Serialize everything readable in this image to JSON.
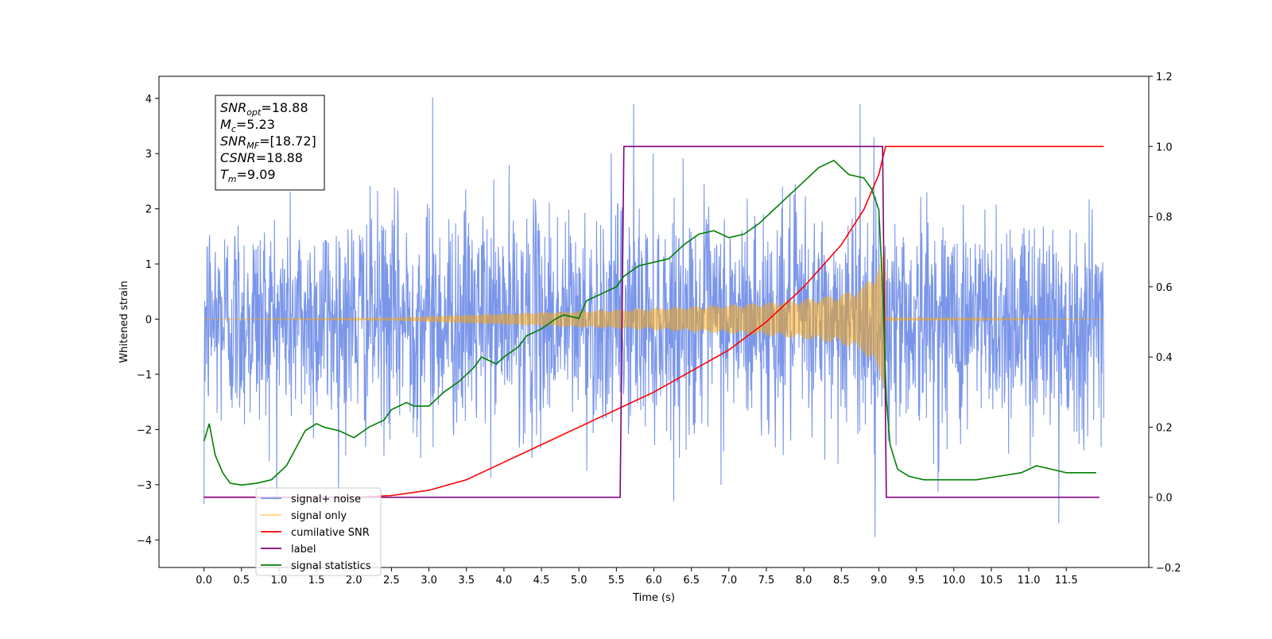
{
  "chart_data": {
    "type": "line",
    "xlabel": "Time (s)",
    "ylabel": "Whitened strain",
    "xlim": [
      -0.6,
      12.6
    ],
    "ylim": [
      -4.5,
      4.4
    ],
    "y2lim": [
      -0.2,
      1.2
    ],
    "x_ticks": [
      0.0,
      0.5,
      1.0,
      1.5,
      2.0,
      2.5,
      3.0,
      3.5,
      4.0,
      4.5,
      5.0,
      5.5,
      6.0,
      6.5,
      7.0,
      7.5,
      8.0,
      8.5,
      9.0,
      9.5,
      10.0,
      10.5,
      11.0,
      11.5
    ],
    "x_tick_labels": [
      "0.0",
      "0.5",
      "1.0",
      "1.5",
      "2.0",
      "2.5",
      "3.0",
      "3.5",
      "4.0",
      "4.5",
      "5.0",
      "5.5",
      "6.0",
      "6.5",
      "7.0",
      "7.5",
      "8.0",
      "8.5",
      "9.0",
      "9.5",
      "10.0",
      "10.5",
      "11.0",
      "11.5"
    ],
    "y_ticks": [
      -4,
      -3,
      -2,
      -1,
      0,
      1,
      2,
      3,
      4
    ],
    "y_tick_labels": [
      "−4",
      "−3",
      "−2",
      "−1",
      "0",
      "1",
      "2",
      "3",
      "4"
    ],
    "y2_ticks": [
      -0.2,
      0.0,
      0.2,
      0.4,
      0.6,
      0.8,
      1.0,
      1.2
    ],
    "y2_tick_labels": [
      "−0.2",
      "0.0",
      "0.2",
      "0.4",
      "0.6",
      "0.8",
      "1.0",
      "1.2"
    ],
    "legend_position": "lower-left",
    "annotation": {
      "lines": [
        {
          "main": "SNR",
          "sub": "opt",
          "rest": "=18.88"
        },
        {
          "main": "M",
          "sub": "c",
          "rest": "=5.23"
        },
        {
          "main": "SNR",
          "sub": "MF",
          "rest": "=[18.72]"
        },
        {
          "main": "CSNR",
          "sub": "",
          "rest": "=18.88"
        },
        {
          "main": "T",
          "sub": "m",
          "rest": "=9.09"
        }
      ]
    },
    "series": [
      {
        "name": "signal+ noise",
        "axis": "left",
        "color": "#4169e1",
        "description": "white noise of std ~1 spanning 0 to 12 s, peaks near 4.0 at 3.05 s and -3.95 at 8.9 s",
        "x_range": [
          0.0,
          12.0
        ],
        "noise_std": 1.0,
        "notable_peaks": [
          [
            3.05,
            4.02
          ],
          [
            5.73,
            3.9
          ],
          [
            8.75,
            3.9
          ],
          [
            8.95,
            -3.95
          ],
          [
            11.4,
            -3.7
          ],
          [
            0.0,
            -3.35
          ]
        ]
      },
      {
        "name": "signal only",
        "axis": "left",
        "color": "#ffa500",
        "description": "chirp with growing amplitude from 2.5 s to merger at 9.09 s",
        "x_range": [
          0.0,
          12.0
        ],
        "envelope_x": [
          0.0,
          2.5,
          3.0,
          4.0,
          5.0,
          6.0,
          7.0,
          7.5,
          8.0,
          8.5,
          8.8,
          9.0,
          9.09,
          9.1,
          12.0
        ],
        "envelope_amp": [
          0.0,
          0.02,
          0.05,
          0.1,
          0.15,
          0.2,
          0.26,
          0.3,
          0.36,
          0.45,
          0.6,
          1.0,
          1.3,
          0.03,
          0.0
        ]
      },
      {
        "name": "cumilative SNR",
        "axis": "right",
        "color": "#ff0000",
        "x": [
          0.0,
          1.0,
          2.0,
          2.5,
          3.0,
          3.5,
          4.0,
          4.5,
          5.0,
          5.5,
          6.0,
          6.5,
          7.0,
          7.5,
          8.0,
          8.5,
          8.8,
          9.0,
          9.09,
          9.1,
          12.0
        ],
        "values": [
          0.0,
          0.0,
          0.0,
          0.005,
          0.02,
          0.05,
          0.1,
          0.15,
          0.2,
          0.25,
          0.3,
          0.36,
          0.42,
          0.5,
          0.6,
          0.72,
          0.82,
          0.92,
          1.0,
          1.0,
          1.0
        ]
      },
      {
        "name": "label",
        "axis": "right",
        "color": "#800080",
        "x": [
          0.0,
          5.55,
          5.6,
          9.05,
          9.1,
          11.94
        ],
        "values": [
          0.0,
          0.0,
          1.0,
          1.0,
          0.0,
          0.0
        ]
      },
      {
        "name": "signal statistics",
        "axis": "right",
        "color": "#008000",
        "x": [
          0.0,
          0.07,
          0.15,
          0.25,
          0.35,
          0.5,
          0.7,
          0.9,
          1.1,
          1.2,
          1.35,
          1.5,
          1.6,
          1.8,
          2.0,
          2.2,
          2.4,
          2.5,
          2.7,
          2.8,
          3.0,
          3.2,
          3.4,
          3.6,
          3.7,
          3.9,
          4.0,
          4.2,
          4.3,
          4.5,
          4.7,
          4.8,
          5.0,
          5.1,
          5.3,
          5.5,
          5.6,
          5.8,
          6.0,
          6.2,
          6.4,
          6.6,
          6.8,
          7.0,
          7.2,
          7.4,
          7.6,
          7.8,
          8.0,
          8.2,
          8.4,
          8.6,
          8.8,
          8.9,
          9.0,
          9.05,
          9.1,
          9.15,
          9.25,
          9.4,
          9.6,
          9.8,
          10.0,
          10.3,
          10.6,
          10.9,
          11.1,
          11.3,
          11.5,
          11.7,
          11.9
        ],
        "values": [
          0.16,
          0.21,
          0.12,
          0.07,
          0.04,
          0.035,
          0.04,
          0.05,
          0.09,
          0.13,
          0.19,
          0.21,
          0.2,
          0.19,
          0.17,
          0.2,
          0.22,
          0.25,
          0.27,
          0.26,
          0.26,
          0.3,
          0.33,
          0.37,
          0.4,
          0.38,
          0.4,
          0.43,
          0.46,
          0.48,
          0.51,
          0.52,
          0.51,
          0.56,
          0.58,
          0.6,
          0.63,
          0.66,
          0.67,
          0.68,
          0.72,
          0.75,
          0.76,
          0.74,
          0.75,
          0.78,
          0.82,
          0.86,
          0.9,
          0.94,
          0.96,
          0.92,
          0.91,
          0.88,
          0.82,
          0.6,
          0.28,
          0.15,
          0.08,
          0.06,
          0.05,
          0.05,
          0.05,
          0.05,
          0.06,
          0.07,
          0.09,
          0.08,
          0.07,
          0.07,
          0.07
        ]
      }
    ]
  }
}
